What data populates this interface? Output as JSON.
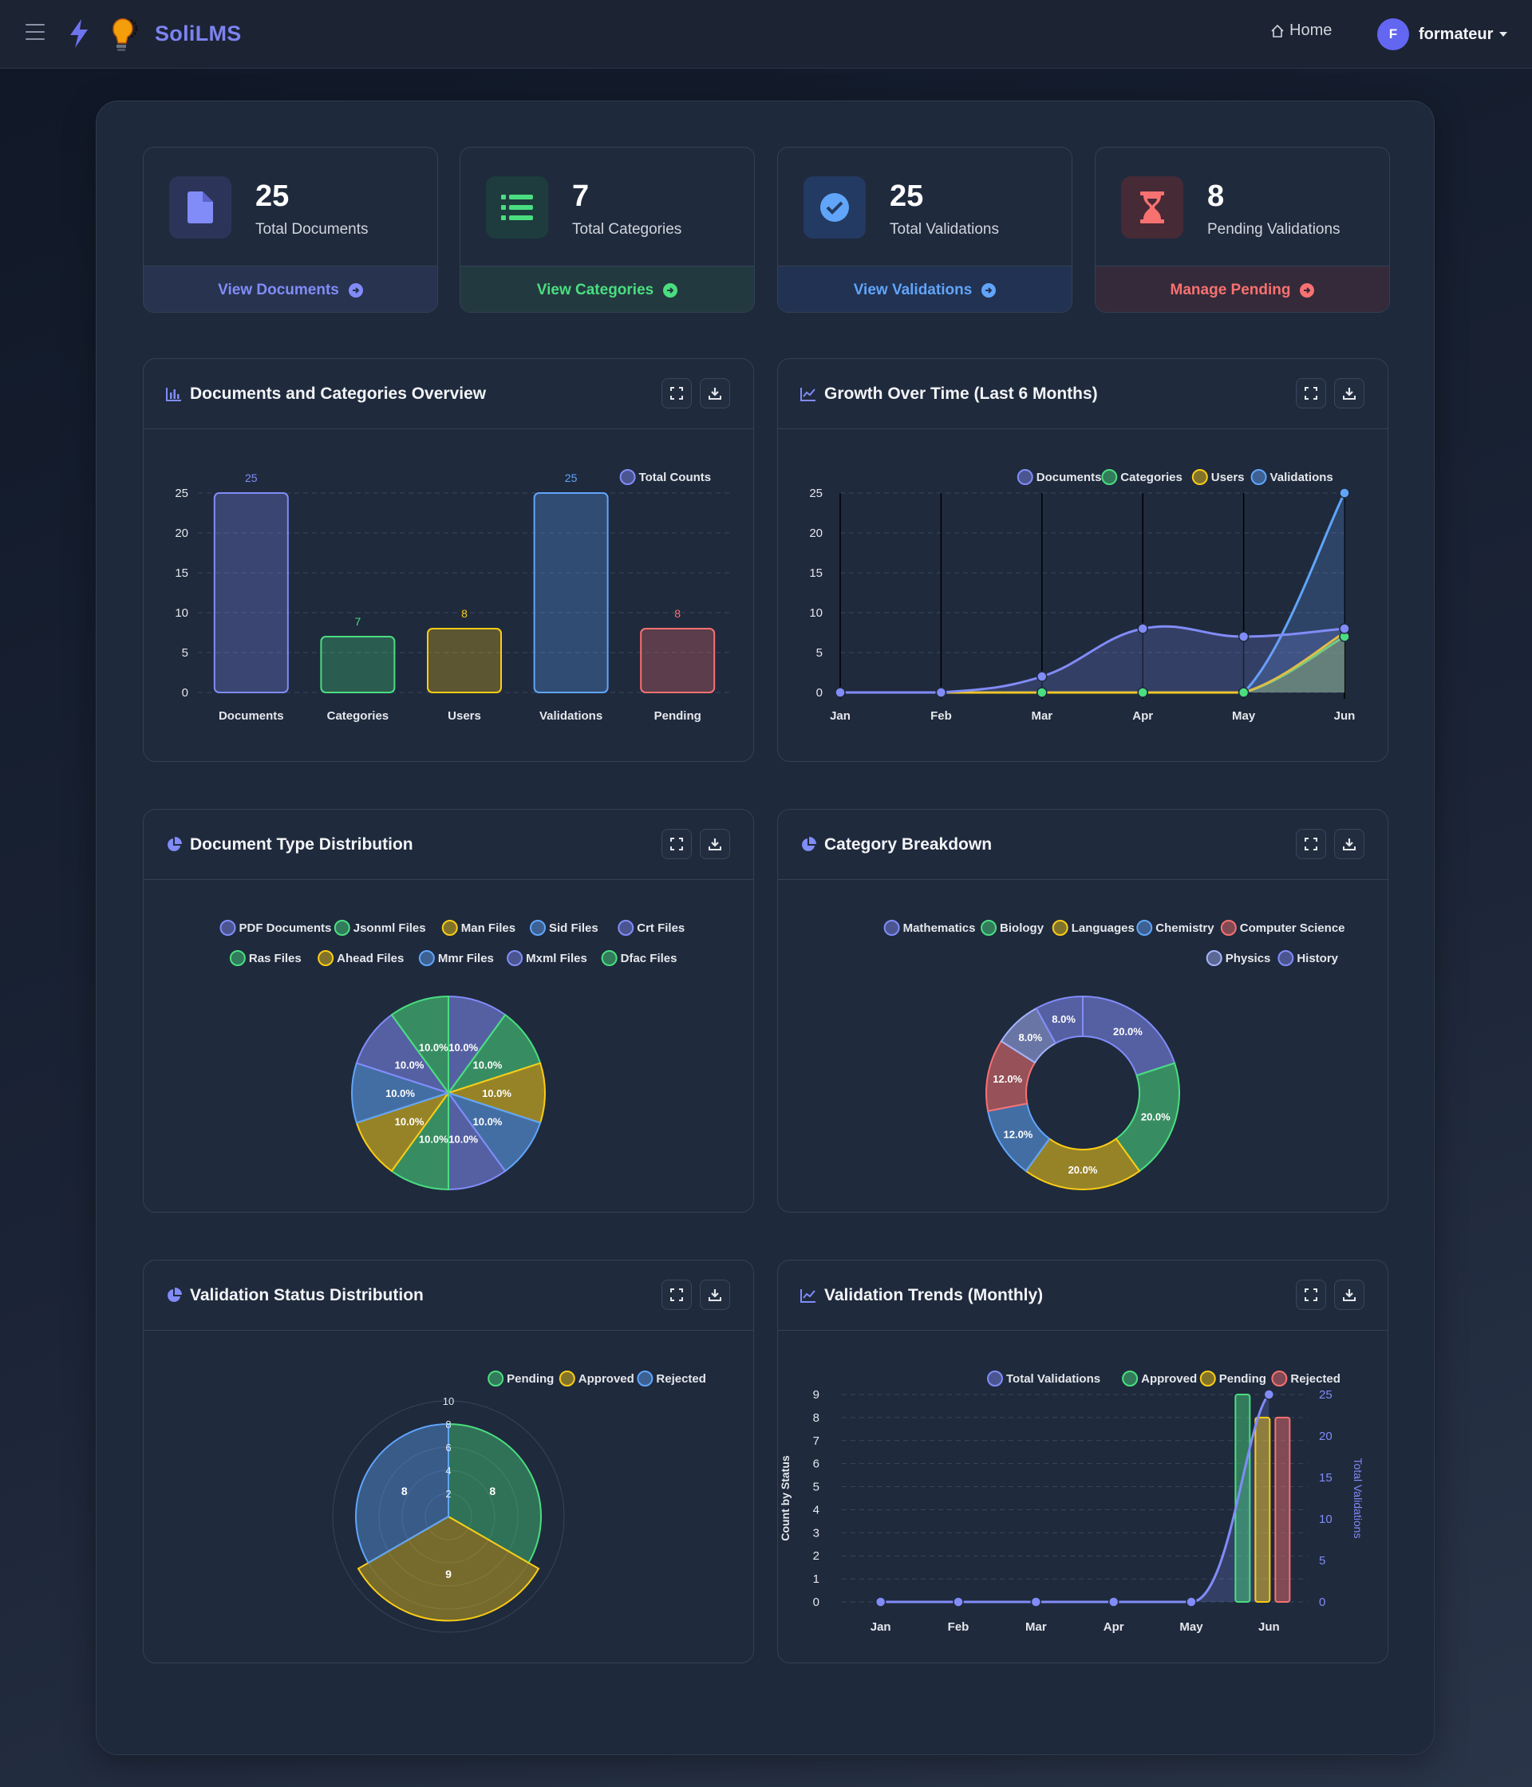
{
  "nav": {
    "brand": "SoliLMS",
    "home_label": "Home",
    "user_name": "formateur",
    "user_initial": "F"
  },
  "stats": [
    {
      "value": "25",
      "label": "Total Documents",
      "link": "View Documents",
      "color": "#818cf8",
      "bg": "#2c3559",
      "foot_bg": "#283350"
    },
    {
      "value": "7",
      "label": "Total Categories",
      "link": "View Categories",
      "color": "#4ade80",
      "bg": "#1e3c3d",
      "foot_bg": "#223a3f"
    },
    {
      "value": "25",
      "label": "Total Validations",
      "link": "View Validations",
      "color": "#60a5fa",
      "bg": "#233a62",
      "foot_bg": "#223252"
    },
    {
      "value": "8",
      "label": "Pending Validations",
      "link": "Manage Pending",
      "color": "#f87171",
      "bg": "#462a36",
      "foot_bg": "#342a39"
    }
  ],
  "panels": {
    "overview_title": "Documents and Categories Overview",
    "growth_title": "Growth Over Time (Last 6 Months)",
    "doctype_title": "Document Type Distribution",
    "category_title": "Category Breakdown",
    "validation_status_title": "Validation Status Distribution",
    "validation_trends_title": "Validation Trends (Monthly)"
  },
  "chart_data": [
    {
      "id": "overview",
      "type": "bar",
      "categories": [
        "Documents",
        "Categories",
        "Users",
        "Validations",
        "Pending"
      ],
      "values": [
        25,
        7,
        8,
        25,
        8
      ],
      "colors": [
        "#818cf8",
        "#4ade80",
        "#facc15",
        "#60a5fa",
        "#f87171"
      ],
      "legend": [
        "Total Counts"
      ],
      "ylim": [
        0,
        25
      ],
      "yticks": [
        0,
        5,
        10,
        15,
        20,
        25
      ],
      "grid": true,
      "legend_position": "top-right"
    },
    {
      "id": "growth",
      "type": "line",
      "x": [
        "Jan",
        "Feb",
        "Mar",
        "Apr",
        "May",
        "Jun"
      ],
      "series": [
        {
          "name": "Documents",
          "values": [
            0,
            0,
            2,
            8,
            7,
            8
          ],
          "color": "#818cf8"
        },
        {
          "name": "Categories",
          "values": [
            0,
            0,
            0,
            0,
            0,
            7
          ],
          "color": "#4ade80"
        },
        {
          "name": "Users",
          "values": [
            0,
            0,
            0,
            0,
            0,
            7.5
          ],
          "color": "#facc15"
        },
        {
          "name": "Validations",
          "values": [
            0,
            0,
            0,
            0,
            0,
            25
          ],
          "color": "#60a5fa"
        }
      ],
      "ylim": [
        0,
        25
      ],
      "yticks": [
        0,
        5,
        10,
        15,
        20,
        25
      ],
      "legend_position": "top-right"
    },
    {
      "id": "doctype",
      "type": "pie",
      "labels": [
        "PDF Documents",
        "Jsonml Files",
        "Man Files",
        "Sid Files",
        "Crt Files",
        "Ras Files",
        "Ahead Files",
        "Mmr Files",
        "Mxml Files",
        "Dfac Files"
      ],
      "values": [
        10,
        10,
        10,
        10,
        10,
        10,
        10,
        10,
        10,
        10
      ],
      "slice_labels": [
        "10.0%",
        "10.0%",
        "10.0%",
        "10.0%",
        "10.0%",
        "10.0%",
        "10.0%",
        "10.0%",
        "10.0%",
        "10.0%"
      ],
      "colors": [
        "#818cf8",
        "#4ade80",
        "#facc15",
        "#60a5fa",
        "#818cf8",
        "#4ade80",
        "#facc15",
        "#60a5fa",
        "#818cf8",
        "#4ade80"
      ],
      "legend_position": "top"
    },
    {
      "id": "category",
      "type": "pie",
      "donut": true,
      "labels": [
        "Mathematics",
        "Biology",
        "Languages",
        "Chemistry",
        "Computer Science",
        "Physics",
        "History"
      ],
      "values": [
        20,
        20,
        20,
        12,
        12,
        8,
        8
      ],
      "slice_labels": [
        "20.0%",
        "20.0%",
        "20.0%",
        "12.0%",
        "12.0%",
        "8.0%",
        "8.0%"
      ],
      "colors": [
        "#818cf8",
        "#4ade80",
        "#facc15",
        "#60a5fa",
        "#f87171",
        "#a5b4fc",
        "#818cf8"
      ],
      "legend_position": "top"
    },
    {
      "id": "validation_status",
      "type": "polar-area",
      "labels": [
        "Pending",
        "Approved",
        "Rejected"
      ],
      "values": [
        8,
        9,
        8
      ],
      "colors": [
        "#4ade80",
        "#facc15",
        "#60a5fa"
      ],
      "rlim": [
        0,
        10
      ],
      "rticks": [
        2,
        4,
        6,
        8,
        10
      ],
      "legend_position": "top"
    },
    {
      "id": "validation_trends",
      "type": "bar-line",
      "x": [
        "Jan",
        "Feb",
        "Mar",
        "Apr",
        "May",
        "Jun"
      ],
      "series": [
        {
          "name": "Total Validations",
          "kind": "line",
          "axis": "right",
          "values": [
            0,
            0,
            0,
            0,
            0,
            25
          ],
          "color": "#818cf8"
        },
        {
          "name": "Approved",
          "kind": "bar",
          "axis": "left",
          "values": [
            0,
            0,
            0,
            0,
            0,
            9
          ],
          "color": "#4ade80"
        },
        {
          "name": "Pending",
          "kind": "bar",
          "axis": "left",
          "values": [
            0,
            0,
            0,
            0,
            0,
            8
          ],
          "color": "#facc15"
        },
        {
          "name": "Rejected",
          "kind": "bar",
          "axis": "left",
          "values": [
            0,
            0,
            0,
            0,
            0,
            8
          ],
          "color": "#f87171"
        }
      ],
      "ylabel": "Count by Status",
      "y2label": "Total Validations",
      "ylim": [
        0,
        9
      ],
      "yticks": [
        0,
        1,
        2,
        3,
        4,
        5,
        6,
        7,
        8,
        9
      ],
      "y2lim": [
        0,
        25
      ],
      "y2ticks": [
        0,
        5,
        10,
        15,
        20,
        25
      ],
      "legend_position": "top-right"
    }
  ]
}
